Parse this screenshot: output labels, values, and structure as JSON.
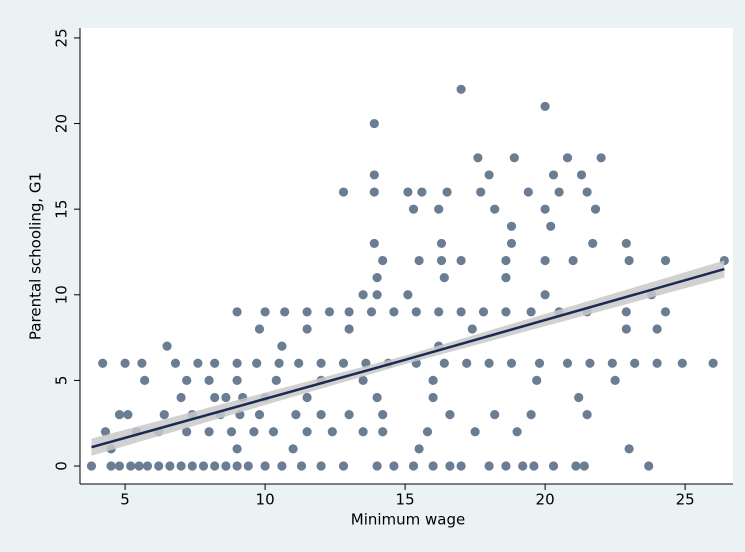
{
  "chart_data": {
    "type": "scatter",
    "xlabel": "Minimum wage",
    "ylabel": "Parental schooling, G1",
    "xlim": [
      3.39,
      26.71
    ],
    "ylim": [
      -1.05,
      25.58
    ],
    "xticks": [
      5,
      10,
      15,
      20,
      25
    ],
    "yticks": [
      0,
      5,
      10,
      15,
      20,
      25
    ],
    "grid": false,
    "scatter": {
      "color": "#6b7d92",
      "x": [
        3.8,
        4.5,
        4.8,
        5.2,
        5.5,
        5.8,
        6.2,
        6.6,
        7,
        7.4,
        7.8,
        8.2,
        8.6,
        9,
        9.4,
        10,
        10.6,
        11.3,
        12,
        12.8,
        14,
        14.6,
        15.3,
        16,
        16.6,
        17,
        18,
        18.6,
        19.2,
        19.6,
        20.3,
        21.1,
        21.4,
        23.7,
        4.5,
        9,
        11,
        15.5,
        23,
        4.3,
        5.4,
        6.2,
        7.2,
        8,
        8.8,
        9.6,
        10.3,
        11.5,
        12.4,
        13.5,
        14.2,
        15.8,
        17.5,
        19,
        4.8,
        5.1,
        6.4,
        7.4,
        8.4,
        9.1,
        9.8,
        11.1,
        12,
        13,
        14.2,
        16.6,
        18.2,
        19.5,
        21.5,
        7,
        8.2,
        8.6,
        9.2,
        10,
        11.5,
        14,
        16,
        21.2,
        5.7,
        7.2,
        8,
        9,
        10.4,
        12,
        13.5,
        16,
        19.7,
        22.5,
        4.2,
        5,
        5.6,
        6.8,
        7.6,
        8.2,
        9,
        9.7,
        10.5,
        11.2,
        12,
        12.8,
        13.6,
        14.4,
        15.4,
        16.4,
        17.2,
        18,
        18.8,
        19.8,
        20.8,
        21.6,
        22.4,
        23.2,
        24,
        24.9,
        26,
        6.5,
        10.6,
        16.2,
        9.8,
        11.5,
        13,
        17.4,
        22.9,
        24,
        9,
        10,
        10.7,
        11.5,
        12.3,
        13,
        13.8,
        14.6,
        15.4,
        16.2,
        17,
        17.8,
        18.6,
        19.5,
        20.5,
        21.5,
        22.9,
        24.3,
        13.5,
        14,
        15.1,
        20,
        23.8,
        14,
        16.4,
        18.6,
        14.2,
        15.5,
        16.3,
        17,
        18.6,
        20,
        21,
        23,
        24.3,
        26.4,
        13.9,
        16.3,
        18.8,
        21.7,
        22.9,
        18.8,
        20.2,
        15.3,
        16.2,
        18.2,
        20,
        21.8,
        12.8,
        13.9,
        15.1,
        15.6,
        16.5,
        17.7,
        19.4,
        20.5,
        21.5,
        13.9,
        18,
        20.3,
        21.3,
        17.6,
        18.9,
        20.8,
        22,
        13.9,
        20,
        17
      ],
      "y": [
        0,
        0,
        0,
        0,
        0,
        0,
        0,
        0,
        0,
        0,
        0,
        0,
        0,
        0,
        0,
        0,
        0,
        0,
        0,
        0,
        0,
        0,
        0,
        0,
        0,
        0,
        0,
        0,
        0,
        0,
        0,
        0,
        0,
        0,
        1,
        1,
        1,
        1,
        1,
        2,
        2,
        2,
        2,
        2,
        2,
        2,
        2,
        2,
        2,
        2,
        2,
        2,
        2,
        2,
        3,
        3,
        3,
        3,
        3,
        3,
        3,
        3,
        3,
        3,
        3,
        3,
        3,
        3,
        3,
        4,
        4,
        4,
        4,
        4,
        4,
        4,
        4,
        4,
        5,
        5,
        5,
        5,
        5,
        5,
        5,
        5,
        5,
        5,
        6,
        6,
        6,
        6,
        6,
        6,
        6,
        6,
        6,
        6,
        6,
        6,
        6,
        6,
        6,
        6,
        6,
        6,
        6,
        6,
        6,
        6,
        6,
        6,
        6,
        6,
        6,
        7,
        7,
        7,
        8,
        8,
        8,
        8,
        8,
        8,
        9,
        9,
        9,
        9,
        9,
        9,
        9,
        9,
        9,
        9,
        9,
        9,
        9,
        9,
        9,
        9,
        9,
        9,
        10,
        10,
        10,
        10,
        10,
        11,
        11,
        11,
        12,
        12,
        12,
        12,
        12,
        12,
        12,
        12,
        12,
        12,
        13,
        13,
        13,
        13,
        13,
        14,
        14,
        15,
        15,
        15,
        15,
        15,
        16,
        16,
        16,
        16,
        16,
        16,
        16,
        16,
        16,
        17,
        17,
        17,
        17,
        18,
        18,
        18,
        18,
        20,
        21,
        22
      ]
    },
    "fit": {
      "color": "#1b2a52",
      "ci_color": "#c9c9c9",
      "x": [
        3.8,
        15,
        26.4
      ],
      "y": [
        1.1,
        6.2,
        11.5
      ],
      "ci_lower": [
        0.6,
        5.95,
        11
      ],
      "ci_upper": [
        1.6,
        6.45,
        12
      ]
    }
  }
}
